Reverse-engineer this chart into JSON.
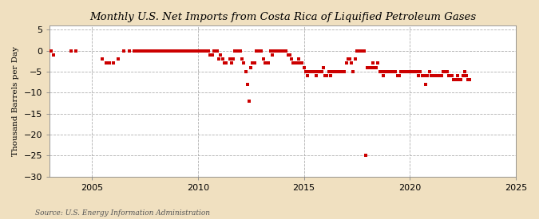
{
  "title": "Monthly U.S. Net Imports from Costa Rica of Liquified Petroleum Gases",
  "ylabel": "Thousand Barrels per Day",
  "source": "Source: U.S. Energy Information Administration",
  "xlim": [
    2003.0,
    2025.0
  ],
  "ylim": [
    -30,
    6
  ],
  "yticks": [
    5,
    0,
    -5,
    -10,
    -15,
    -20,
    -25,
    -30
  ],
  "xticks": [
    2005,
    2010,
    2015,
    2020,
    2025
  ],
  "bg_color": "#f0e0c0",
  "plot_bg_color": "#ffffff",
  "dot_color": "#cc0000",
  "dot_size": 7,
  "data_points": [
    [
      2003.08,
      0
    ],
    [
      2003.17,
      -1
    ],
    [
      2004.0,
      0
    ],
    [
      2004.25,
      0
    ],
    [
      2005.5,
      -2
    ],
    [
      2005.67,
      -3
    ],
    [
      2005.83,
      -3
    ],
    [
      2006.0,
      -3
    ],
    [
      2006.25,
      -2
    ],
    [
      2006.5,
      0
    ],
    [
      2006.75,
      0
    ],
    [
      2007.0,
      0
    ],
    [
      2007.08,
      0
    ],
    [
      2007.17,
      0
    ],
    [
      2007.25,
      0
    ],
    [
      2007.33,
      0
    ],
    [
      2007.42,
      0
    ],
    [
      2007.5,
      0
    ],
    [
      2007.58,
      0
    ],
    [
      2007.67,
      0
    ],
    [
      2007.75,
      0
    ],
    [
      2007.83,
      0
    ],
    [
      2007.92,
      0
    ],
    [
      2008.0,
      0
    ],
    [
      2008.08,
      0
    ],
    [
      2008.17,
      0
    ],
    [
      2008.25,
      0
    ],
    [
      2008.33,
      0
    ],
    [
      2008.42,
      0
    ],
    [
      2008.5,
      0
    ],
    [
      2008.58,
      0
    ],
    [
      2008.67,
      0
    ],
    [
      2008.75,
      0
    ],
    [
      2008.83,
      0
    ],
    [
      2008.92,
      0
    ],
    [
      2009.0,
      0
    ],
    [
      2009.08,
      0
    ],
    [
      2009.17,
      0
    ],
    [
      2009.25,
      0
    ],
    [
      2009.33,
      0
    ],
    [
      2009.42,
      0
    ],
    [
      2009.5,
      0
    ],
    [
      2009.58,
      0
    ],
    [
      2009.67,
      0
    ],
    [
      2009.75,
      0
    ],
    [
      2009.83,
      0
    ],
    [
      2009.92,
      0
    ],
    [
      2010.0,
      0
    ],
    [
      2010.08,
      0
    ],
    [
      2010.17,
      0
    ],
    [
      2010.25,
      0
    ],
    [
      2010.33,
      0
    ],
    [
      2010.42,
      0
    ],
    [
      2010.5,
      0
    ],
    [
      2010.58,
      -1
    ],
    [
      2010.67,
      -1
    ],
    [
      2010.75,
      0
    ],
    [
      2010.83,
      0
    ],
    [
      2010.92,
      0
    ],
    [
      2011.0,
      -2
    ],
    [
      2011.08,
      -1
    ],
    [
      2011.17,
      -2
    ],
    [
      2011.25,
      -3
    ],
    [
      2011.33,
      -3
    ],
    [
      2011.5,
      -2
    ],
    [
      2011.58,
      -3
    ],
    [
      2011.67,
      -2
    ],
    [
      2011.75,
      0
    ],
    [
      2011.83,
      0
    ],
    [
      2011.92,
      0
    ],
    [
      2012.0,
      0
    ],
    [
      2012.08,
      -2
    ],
    [
      2012.17,
      -3
    ],
    [
      2012.25,
      -5
    ],
    [
      2012.33,
      -8
    ],
    [
      2012.42,
      -12
    ],
    [
      2012.5,
      -4
    ],
    [
      2012.58,
      -3
    ],
    [
      2012.67,
      -3
    ],
    [
      2012.75,
      0
    ],
    [
      2012.83,
      0
    ],
    [
      2012.92,
      0
    ],
    [
      2013.0,
      0
    ],
    [
      2013.08,
      -2
    ],
    [
      2013.17,
      -3
    ],
    [
      2013.25,
      -3
    ],
    [
      2013.33,
      -3
    ],
    [
      2013.42,
      0
    ],
    [
      2013.5,
      -1
    ],
    [
      2013.58,
      0
    ],
    [
      2013.67,
      0
    ],
    [
      2013.75,
      0
    ],
    [
      2013.83,
      0
    ],
    [
      2013.92,
      0
    ],
    [
      2014.0,
      0
    ],
    [
      2014.08,
      0
    ],
    [
      2014.17,
      0
    ],
    [
      2014.25,
      -1
    ],
    [
      2014.33,
      -1
    ],
    [
      2014.42,
      -2
    ],
    [
      2014.5,
      -3
    ],
    [
      2014.58,
      -3
    ],
    [
      2014.67,
      -3
    ],
    [
      2014.75,
      -2
    ],
    [
      2014.83,
      -3
    ],
    [
      2014.92,
      -3
    ],
    [
      2015.0,
      -4
    ],
    [
      2015.08,
      -5
    ],
    [
      2015.17,
      -6
    ],
    [
      2015.25,
      -5
    ],
    [
      2015.33,
      -5
    ],
    [
      2015.42,
      -5
    ],
    [
      2015.5,
      -5
    ],
    [
      2015.58,
      -6
    ],
    [
      2015.67,
      -5
    ],
    [
      2015.75,
      -5
    ],
    [
      2015.83,
      -5
    ],
    [
      2015.92,
      -4
    ],
    [
      2016.0,
      -6
    ],
    [
      2016.08,
      -6
    ],
    [
      2016.17,
      -5
    ],
    [
      2016.25,
      -6
    ],
    [
      2016.33,
      -5
    ],
    [
      2016.42,
      -5
    ],
    [
      2016.5,
      -5
    ],
    [
      2016.58,
      -5
    ],
    [
      2016.67,
      -5
    ],
    [
      2016.75,
      -5
    ],
    [
      2016.83,
      -5
    ],
    [
      2016.92,
      -5
    ],
    [
      2017.0,
      -3
    ],
    [
      2017.08,
      -2
    ],
    [
      2017.17,
      -2
    ],
    [
      2017.25,
      -3
    ],
    [
      2017.33,
      -5
    ],
    [
      2017.42,
      -2
    ],
    [
      2017.5,
      0
    ],
    [
      2017.58,
      0
    ],
    [
      2017.67,
      0
    ],
    [
      2017.75,
      0
    ],
    [
      2017.83,
      0
    ],
    [
      2017.92,
      -25
    ],
    [
      2018.0,
      -4
    ],
    [
      2018.08,
      -4
    ],
    [
      2018.17,
      -4
    ],
    [
      2018.25,
      -3
    ],
    [
      2018.33,
      -4
    ],
    [
      2018.42,
      -4
    ],
    [
      2018.5,
      -3
    ],
    [
      2018.58,
      -5
    ],
    [
      2018.67,
      -5
    ],
    [
      2018.75,
      -6
    ],
    [
      2018.83,
      -5
    ],
    [
      2018.92,
      -5
    ],
    [
      2019.0,
      -5
    ],
    [
      2019.08,
      -5
    ],
    [
      2019.17,
      -5
    ],
    [
      2019.25,
      -5
    ],
    [
      2019.33,
      -5
    ],
    [
      2019.42,
      -6
    ],
    [
      2019.5,
      -6
    ],
    [
      2019.58,
      -5
    ],
    [
      2019.67,
      -5
    ],
    [
      2019.75,
      -5
    ],
    [
      2019.83,
      -5
    ],
    [
      2019.92,
      -5
    ],
    [
      2020.0,
      -5
    ],
    [
      2020.08,
      -5
    ],
    [
      2020.17,
      -5
    ],
    [
      2020.25,
      -5
    ],
    [
      2020.33,
      -5
    ],
    [
      2020.42,
      -6
    ],
    [
      2020.5,
      -5
    ],
    [
      2020.58,
      -6
    ],
    [
      2020.67,
      -6
    ],
    [
      2020.75,
      -8
    ],
    [
      2020.83,
      -6
    ],
    [
      2020.92,
      -5
    ],
    [
      2021.0,
      -6
    ],
    [
      2021.08,
      -6
    ],
    [
      2021.17,
      -6
    ],
    [
      2021.25,
      -6
    ],
    [
      2021.33,
      -6
    ],
    [
      2021.42,
      -6
    ],
    [
      2021.5,
      -6
    ],
    [
      2021.58,
      -5
    ],
    [
      2021.67,
      -5
    ],
    [
      2021.75,
      -5
    ],
    [
      2021.83,
      -6
    ],
    [
      2021.92,
      -6
    ],
    [
      2022.0,
      -6
    ],
    [
      2022.08,
      -7
    ],
    [
      2022.17,
      -7
    ],
    [
      2022.25,
      -6
    ],
    [
      2022.33,
      -7
    ],
    [
      2022.42,
      -7
    ],
    [
      2022.5,
      -6
    ],
    [
      2022.58,
      -5
    ],
    [
      2022.67,
      -6
    ],
    [
      2022.75,
      -7
    ],
    [
      2022.83,
      -7
    ]
  ]
}
